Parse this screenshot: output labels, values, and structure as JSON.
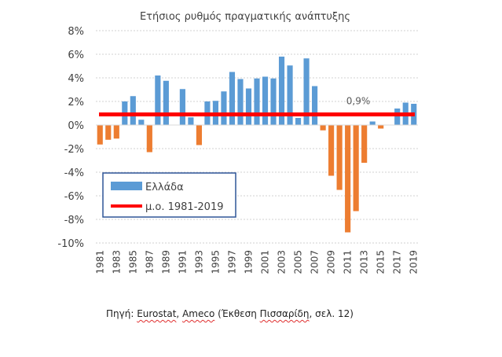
{
  "chart_data": {
    "type": "bar",
    "title": "Ετήσιος ρυθμός πραγματικής ανάπτυξης",
    "xlabel": "",
    "ylabel": "",
    "ylim": [
      -10,
      8
    ],
    "y_ticks": [
      "8%",
      "6%",
      "4%",
      "2%",
      "0%",
      "-2%",
      "-4%",
      "-6%",
      "-8%",
      "-10%"
    ],
    "y_tick_values": [
      8,
      6,
      4,
      2,
      0,
      -2,
      -4,
      -6,
      -8,
      -10
    ],
    "grid": true,
    "categories": [
      "1981",
      "1982",
      "1983",
      "1984",
      "1985",
      "1986",
      "1987",
      "1988",
      "1989",
      "1990",
      "1991",
      "1992",
      "1993",
      "1994",
      "1995",
      "1996",
      "1997",
      "1998",
      "1999",
      "2000",
      "2001",
      "2002",
      "2003",
      "2004",
      "2005",
      "2006",
      "2007",
      "2008",
      "2009",
      "2010",
      "2011",
      "2012",
      "2013",
      "2014",
      "2015",
      "2016",
      "2017",
      "2018",
      "2019"
    ],
    "x_tick_labels": [
      "1981",
      "1983",
      "1985",
      "1987",
      "1989",
      "1991",
      "1993",
      "1995",
      "1997",
      "1999",
      "2001",
      "2003",
      "2005",
      "2007",
      "2009",
      "2011",
      "2013",
      "2015",
      "2017",
      "2019"
    ],
    "series": [
      {
        "name": "Ελλάδα",
        "kind": "bar",
        "color_positive": "#5b9bd5",
        "color_negative": "#ed7d31",
        "values": [
          -1.65,
          -1.25,
          -1.15,
          2.0,
          2.45,
          0.45,
          -2.3,
          4.2,
          3.75,
          0.0,
          3.05,
          0.65,
          -1.7,
          2.0,
          2.05,
          2.85,
          4.5,
          3.9,
          3.1,
          3.95,
          4.1,
          3.95,
          5.8,
          5.05,
          0.6,
          5.65,
          3.3,
          -0.45,
          -4.3,
          -5.5,
          -9.1,
          -7.3,
          -3.2,
          0.3,
          -0.3,
          0.0,
          1.4,
          1.9,
          1.8
        ]
      },
      {
        "name": "μ.ο. 1981-2019",
        "kind": "line",
        "color": "#ff0000",
        "value": 0.9,
        "label": "0,9%"
      }
    ],
    "legend": {
      "position": "lower-left",
      "entries": [
        "Ελλάδα",
        "μ.ο. 1981-2019"
      ],
      "border_color": "#2f5597"
    }
  },
  "source": {
    "prefix": "Πηγή: ",
    "s1": "Eurostat",
    "sep1": ", ",
    "s2": "Ameco",
    "sep2": " (Έκθεση ",
    "s3": "Πισσαρίδη",
    "suffix": ", σελ. 12)"
  }
}
